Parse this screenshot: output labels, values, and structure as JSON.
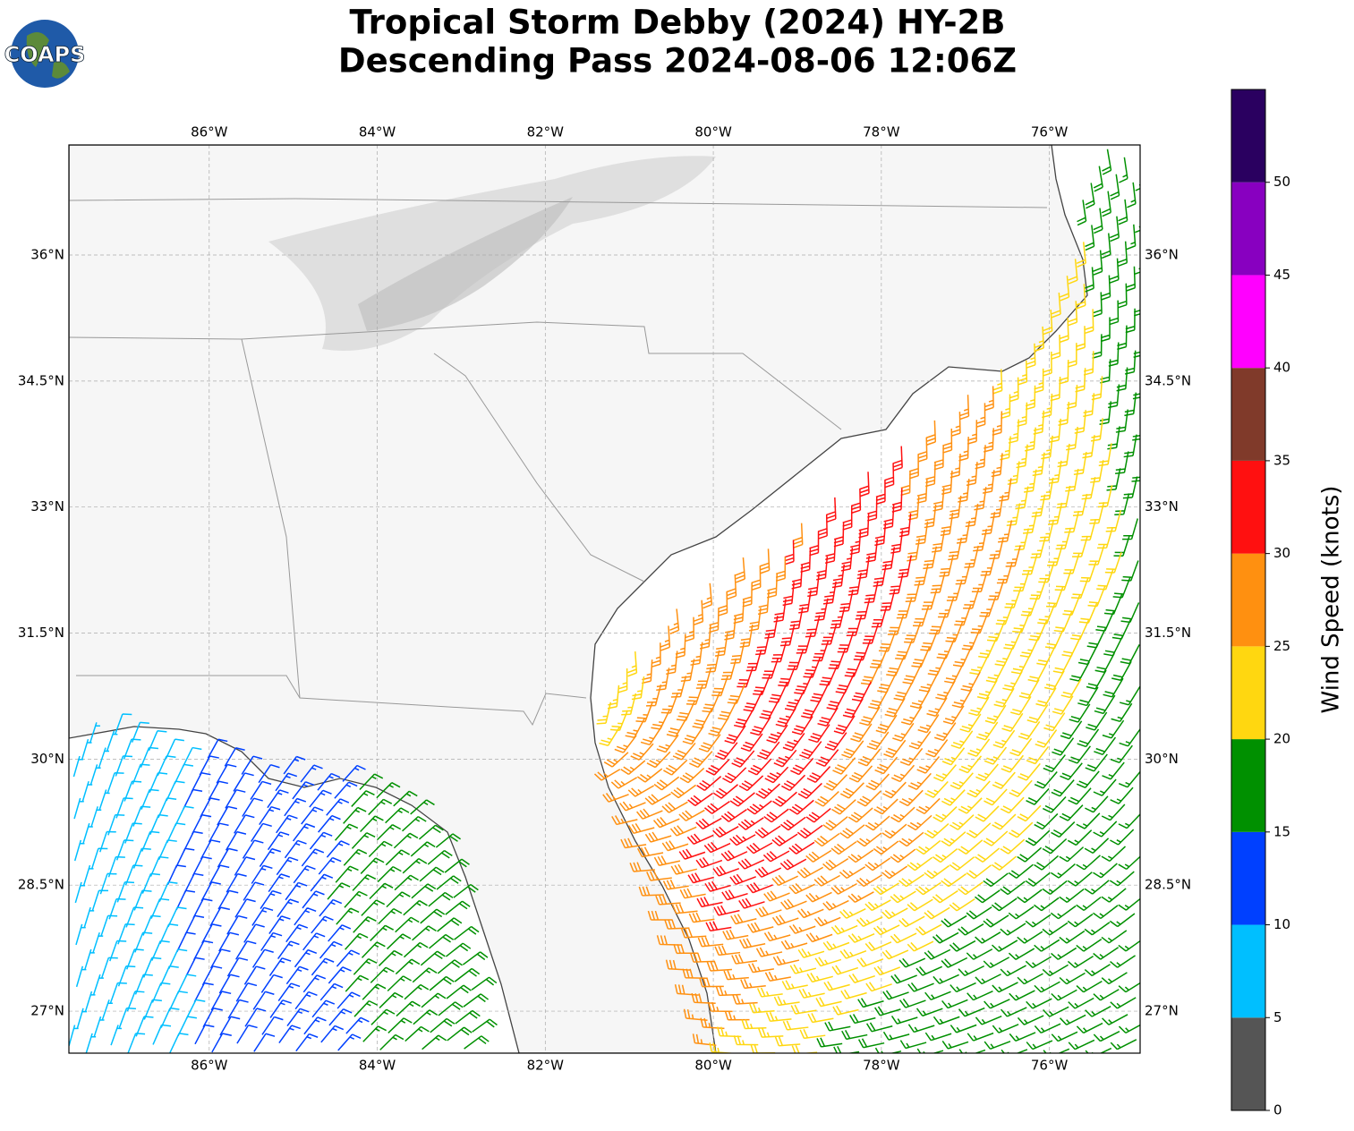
{
  "chart_data": {
    "type": "wind-barb-map",
    "title": [
      "Tropical Storm Debby (2024) HY-2B",
      "Descending Pass 2024-08-06 12:06Z"
    ],
    "logo": "COAPS",
    "xlim": [
      -87.67,
      -74.92
    ],
    "ylim": [
      26.5,
      37.31
    ],
    "xticks": [
      {
        "value": -86,
        "label": "86°W"
      },
      {
        "value": -84,
        "label": "84°W"
      },
      {
        "value": -82,
        "label": "82°W"
      },
      {
        "value": -80,
        "label": "80°W"
      },
      {
        "value": -78,
        "label": "78°W"
      },
      {
        "value": -76,
        "label": "76°W"
      }
    ],
    "yticks": [
      {
        "value": 27,
        "label": "27°N"
      },
      {
        "value": 28.5,
        "label": "28.5°N"
      },
      {
        "value": 30,
        "label": "30°N"
      },
      {
        "value": 31.5,
        "label": "31.5°N"
      },
      {
        "value": 33,
        "label": "33°N"
      },
      {
        "value": 34.5,
        "label": "34.5°N"
      },
      {
        "value": 36,
        "label": "36°N"
      }
    ],
    "grid": true,
    "colorbar": {
      "label": "Wind Speed (knots)",
      "lim": [
        0,
        55
      ],
      "bounds": [
        0,
        5,
        10,
        15,
        20,
        25,
        30,
        35,
        40,
        45,
        50,
        55
      ],
      "colors": [
        "#555555",
        "#00bfff",
        "#0040ff",
        "#009000",
        "#ffd710",
        "#ff9010",
        "#ff1010",
        "#803a2a",
        "#ff00ff",
        "#8800c0",
        "#2a0060"
      ],
      "ticks": [
        0,
        5,
        10,
        15,
        20,
        25,
        30,
        35,
        40,
        45,
        50
      ]
    }
  }
}
